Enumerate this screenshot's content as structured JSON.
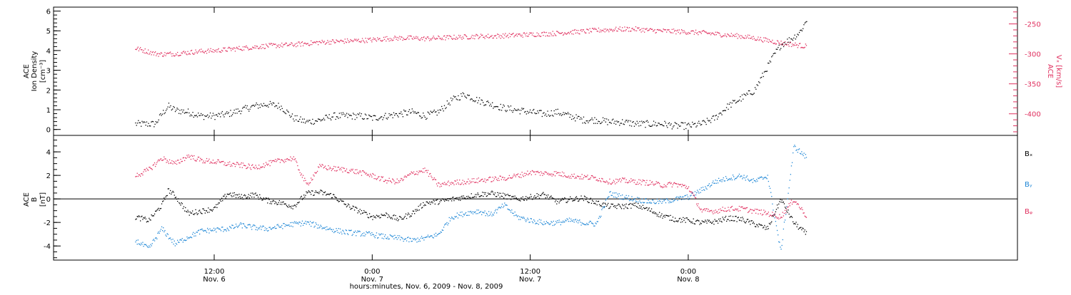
{
  "chart_data": [
    {
      "type": "scatter",
      "panel": "ion-density-and-velocity",
      "ylabel_lines": [
        "ACE",
        "Ion Density",
        "[cm⁻³]"
      ],
      "ylim": [
        -0.3,
        6.2
      ],
      "yticks": [
        0,
        1,
        2,
        3,
        4,
        5,
        6
      ],
      "y2label_lines": [
        "ACE",
        "Vₓ [km/s]"
      ],
      "y2lim": [
        -436,
        -222
      ],
      "y2ticks": [
        -250,
        -300,
        -350,
        -400
      ],
      "colors": {
        "density": "#000000",
        "velocity": "#e0305f"
      },
      "series": [
        {
          "key": "density",
          "x": [
            0,
            0.5,
            1,
            1.5,
            2,
            2.5,
            3,
            4,
            5,
            6,
            7,
            8,
            9,
            10,
            11,
            12,
            13,
            14,
            15,
            16,
            17,
            18,
            19,
            20,
            21,
            22,
            23,
            24,
            25,
            26,
            27,
            28,
            29,
            30,
            31,
            32,
            33,
            34,
            35,
            36,
            37,
            38,
            39,
            40,
            41,
            42,
            43,
            44,
            45,
            46,
            47,
            47.5,
            48,
            48.5,
            49,
            49.5,
            50,
            50.5,
            51
          ],
          "y": [
            0.3,
            0.3,
            0.3,
            0.3,
            0.8,
            1.2,
            1.0,
            0.9,
            0.7,
            0.7,
            0.8,
            1.0,
            1.2,
            1.3,
            1.2,
            0.6,
            0.4,
            0.5,
            0.7,
            0.7,
            0.7,
            0.6,
            0.7,
            0.8,
            0.9,
            0.7,
            0.9,
            1.5,
            1.8,
            1.5,
            1.3,
            1.1,
            1.0,
            0.9,
            0.8,
            0.9,
            0.7,
            0.5,
            0.5,
            0.4,
            0.4,
            0.3,
            0.3,
            0.3,
            0.2,
            0.2,
            0.3,
            0.6,
            1.2,
            1.6,
            2.0,
            2.6,
            3.2,
            3.8,
            4.3,
            4.5,
            4.7,
            5.0,
            5.6
          ]
        },
        {
          "key": "velocity",
          "x": [
            0,
            0.5,
            1,
            1.5,
            2,
            3,
            4,
            5,
            6,
            7,
            8,
            9,
            10,
            11,
            12,
            13,
            14,
            15,
            16,
            17,
            18,
            19,
            20,
            21,
            22,
            23,
            24,
            25,
            26,
            27,
            28,
            29,
            30,
            31,
            32,
            33,
            34,
            35,
            36,
            37,
            38,
            39,
            40,
            41,
            42,
            43,
            44,
            45,
            46,
            47,
            48,
            49,
            50,
            51
          ],
          "y": [
            -290,
            -293,
            -296,
            -299,
            -300,
            -299,
            -297,
            -295,
            -294,
            -292,
            -290,
            -288,
            -286,
            -285,
            -284,
            -282,
            -280,
            -279,
            -278,
            -277,
            -276,
            -274,
            -273,
            -273,
            -274,
            -273,
            -272,
            -271,
            -270,
            -270,
            -269,
            -268,
            -267,
            -266,
            -265,
            -263,
            -262,
            -260,
            -259,
            -258,
            -258,
            -260,
            -261,
            -262,
            -263,
            -264,
            -266,
            -268,
            -270,
            -273,
            -277,
            -281,
            -284,
            -287
          ]
        }
      ]
    },
    {
      "type": "scatter",
      "panel": "magnetic-field",
      "ylabel_lines": [
        "ACE",
        "B",
        "[nT]"
      ],
      "ylim": [
        -5.2,
        5.4
      ],
      "yticks": [
        4,
        2,
        0,
        -2,
        -4
      ],
      "zero_line": true,
      "series": [
        {
          "name": "Bₓ",
          "color": "#000000",
          "x": [
            0,
            1,
            2,
            2.5,
            3,
            4,
            5,
            6,
            7,
            8,
            9,
            10,
            11,
            12,
            13,
            14,
            15,
            16,
            17,
            18,
            19,
            20,
            21,
            22,
            23,
            24,
            25,
            26,
            27,
            28,
            29,
            30,
            31,
            32,
            33,
            34,
            35,
            36,
            37,
            38,
            39,
            40,
            41,
            42,
            43,
            44,
            45,
            46,
            47,
            48,
            49,
            50,
            51
          ],
          "y": [
            -1.5,
            -1.8,
            -0.5,
            0.8,
            0.3,
            -1.2,
            -1.0,
            -0.8,
            0.5,
            0.2,
            0.4,
            -0.1,
            -0.3,
            -0.6,
            0.5,
            0.6,
            0.3,
            -0.5,
            -1.0,
            -1.5,
            -1.3,
            -1.7,
            -1.2,
            -0.3,
            -0.2,
            0.0,
            0.2,
            0.4,
            0.5,
            0.3,
            0.0,
            0.2,
            0.4,
            -0.2,
            0.0,
            0.1,
            -0.3,
            -0.6,
            -0.6,
            -0.5,
            -0.9,
            -1.4,
            -1.7,
            -1.8,
            -2.0,
            -1.9,
            -1.6,
            -1.7,
            -2.1,
            -2.5,
            0.0,
            -2.0,
            -3.0
          ]
        },
        {
          "name": "Bᵧ",
          "color": "#1f87d6",
          "x": [
            0,
            1,
            2,
            3,
            4,
            5,
            6,
            7,
            8,
            9,
            10,
            11,
            12,
            13,
            14,
            15,
            16,
            17,
            18,
            19,
            20,
            21,
            22,
            23,
            24,
            25,
            26,
            27,
            28,
            29,
            30,
            31,
            32,
            33,
            34,
            35,
            36,
            37,
            38,
            39,
            40,
            41,
            42,
            43,
            44,
            45,
            46,
            47,
            48,
            49,
            50,
            51
          ],
          "y": [
            -3.5,
            -4.2,
            -2.5,
            -3.8,
            -3.2,
            -2.7,
            -2.6,
            -2.5,
            -2.2,
            -2.4,
            -2.5,
            -2.3,
            -2.1,
            -2.0,
            -2.3,
            -2.6,
            -2.8,
            -2.9,
            -3.0,
            -3.2,
            -3.3,
            -3.5,
            -3.3,
            -3.0,
            -1.5,
            -1.2,
            -1.0,
            -1.3,
            -0.5,
            -1.5,
            -1.8,
            -2.0,
            -2.0,
            -1.8,
            -2.0,
            -2.1,
            0.5,
            0.2,
            0.0,
            -0.2,
            -0.2,
            0.0,
            0.2,
            0.8,
            1.5,
            1.8,
            2.0,
            1.5,
            2.0,
            -4.5,
            4.5,
            3.5
          ]
        },
        {
          "name": "Bᵩ",
          "color": "#e0305f",
          "x": [
            0,
            1,
            2,
            3,
            4,
            5,
            6,
            7,
            8,
            9,
            10,
            11,
            12,
            13,
            14,
            15,
            16,
            17,
            18,
            19,
            20,
            21,
            22,
            23,
            24,
            25,
            26,
            27,
            28,
            29,
            30,
            31,
            32,
            33,
            34,
            35,
            36,
            37,
            38,
            39,
            40,
            41,
            42,
            43,
            44,
            45,
            46,
            47,
            48,
            49,
            50,
            51
          ],
          "y": [
            2.0,
            2.5,
            3.5,
            3.0,
            3.7,
            3.3,
            3.2,
            3.0,
            2.9,
            2.7,
            3.0,
            3.3,
            3.5,
            1.2,
            2.8,
            2.6,
            2.5,
            2.3,
            2.0,
            1.6,
            1.5,
            2.2,
            2.5,
            1.2,
            1.4,
            1.5,
            1.6,
            1.7,
            1.8,
            2.0,
            2.3,
            2.2,
            2.2,
            2.0,
            1.9,
            1.8,
            1.5,
            1.6,
            1.5,
            1.4,
            1.2,
            1.3,
            1.0,
            -1.0,
            -1.0,
            -0.8,
            -0.8,
            -1.0,
            -1.2,
            -1.5,
            0.0,
            -1.5
          ]
        }
      ]
    }
  ],
  "xaxis": {
    "xlim": [
      -6.2,
      67
    ],
    "ticks": [
      {
        "x": 6,
        "time": "12:00",
        "date": "Nov. 6"
      },
      {
        "x": 18,
        "time": "0:00",
        "date": "Nov. 7"
      },
      {
        "x": 30,
        "time": "12:00",
        "date": "Nov. 7"
      },
      {
        "x": 42,
        "time": "0:00",
        "date": "Nov. 8"
      }
    ],
    "label": "hours:minutes, Nov.  6, 2009 - Nov.  8, 2009"
  }
}
